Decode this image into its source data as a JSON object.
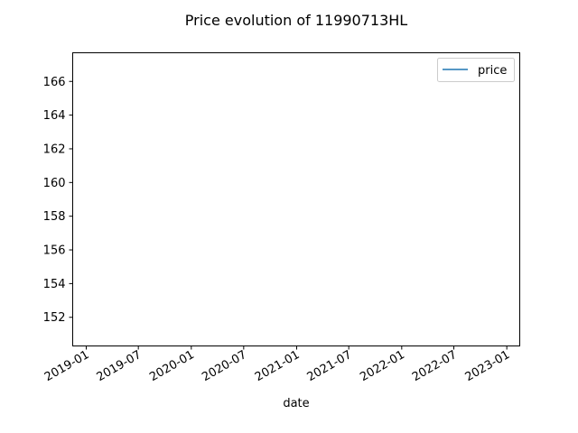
{
  "chart_data": {
    "type": "line",
    "title": "Price evolution of 11990713HL",
    "xlabel": "date",
    "ylabel": "",
    "x_ticks": [
      "2019-01",
      "2019-07",
      "2020-01",
      "2020-07",
      "2021-01",
      "2021-07",
      "2022-01",
      "2022-07",
      "2023-01"
    ],
    "y_ticks": [
      152,
      154,
      156,
      158,
      160,
      162,
      164,
      166
    ],
    "xlim": [
      "2018-11-15",
      "2023-02-15"
    ],
    "ylim": [
      150.3,
      167.7
    ],
    "series": [
      {
        "name": "price",
        "color": "#1f77b4",
        "x": [],
        "y": []
      }
    ],
    "legend": "top-right",
    "grid": false
  }
}
